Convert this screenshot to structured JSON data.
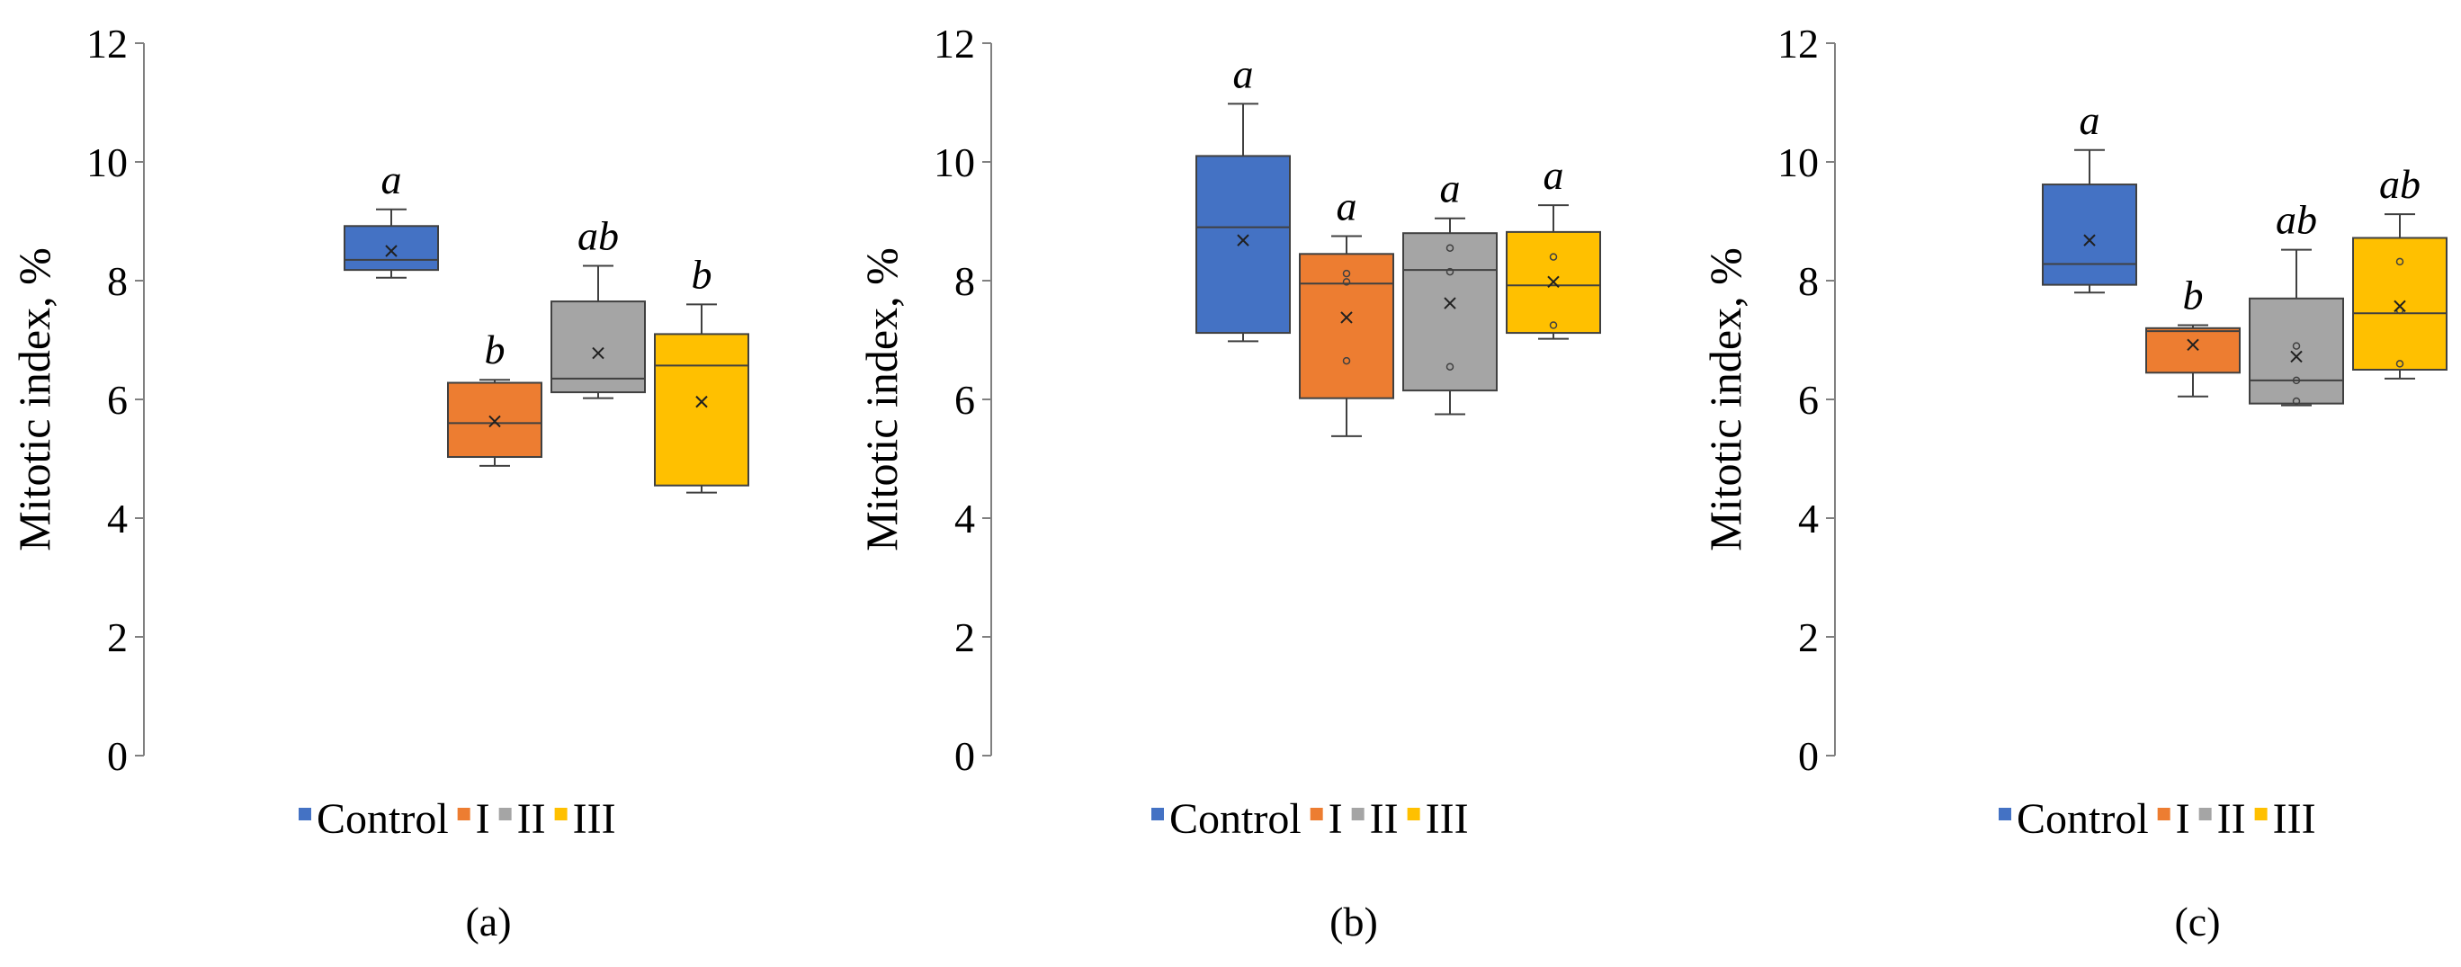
{
  "figure": {
    "legend_items": [
      "Control",
      "I",
      "II",
      "III"
    ],
    "colors": {
      "Control": "#4472C4",
      "I": "#ED7D31",
      "II": "#A5A5A5",
      "III": "#FFC000",
      "outline": "#404040",
      "axis": "#808080"
    }
  },
  "chart_data": [
    {
      "type": "box",
      "panel_label": "(a)",
      "ylabel": "Mitotic index, %",
      "ylim": [
        0,
        12
      ],
      "yticks": [
        "0",
        "2",
        "4",
        "6",
        "8",
        "10",
        "12"
      ],
      "grid": false,
      "legend_position": "bottom-center",
      "categories": [
        "Control",
        "I",
        "II",
        "III"
      ],
      "boxes": [
        {
          "name": "Control",
          "min": 8.05,
          "q1": 8.18,
          "median": 8.35,
          "q3": 8.92,
          "max": 9.2,
          "mean": 8.5,
          "points": [],
          "letter": "a"
        },
        {
          "name": "I",
          "min": 4.88,
          "q1": 5.03,
          "median": 5.6,
          "q3": 6.28,
          "max": 6.33,
          "mean": 5.63,
          "points": [],
          "letter": "b"
        },
        {
          "name": "II",
          "min": 6.02,
          "q1": 6.12,
          "median": 6.35,
          "q3": 7.65,
          "max": 8.25,
          "mean": 6.78,
          "points": [],
          "letter": "ab"
        },
        {
          "name": "III",
          "min": 4.43,
          "q1": 4.55,
          "median": 6.57,
          "q3": 7.1,
          "max": 7.6,
          "mean": 5.96,
          "points": [],
          "letter": "b"
        }
      ]
    },
    {
      "type": "box",
      "panel_label": "(b)",
      "ylabel": "Mitotic index, %",
      "ylim": [
        0,
        12
      ],
      "yticks": [
        "0",
        "2",
        "4",
        "6",
        "8",
        "10",
        "12"
      ],
      "grid": false,
      "legend_position": "bottom-center",
      "categories": [
        "Control",
        "I",
        "II",
        "III"
      ],
      "boxes": [
        {
          "name": "Control",
          "min": 6.98,
          "q1": 7.12,
          "median": 8.9,
          "q3": 10.1,
          "max": 10.98,
          "mean": 8.68,
          "points": [],
          "letter": "a"
        },
        {
          "name": "I",
          "min": 5.38,
          "q1": 6.02,
          "median": 7.95,
          "q3": 8.45,
          "max": 8.75,
          "mean": 7.38,
          "points": [
            8.12,
            7.98,
            6.65
          ],
          "letter": "a"
        },
        {
          "name": "II",
          "min": 5.75,
          "q1": 6.15,
          "median": 8.18,
          "q3": 8.8,
          "max": 9.05,
          "mean": 7.62,
          "points": [
            8.55,
            8.15,
            6.55
          ],
          "letter": "a"
        },
        {
          "name": "III",
          "min": 7.02,
          "q1": 7.12,
          "median": 7.92,
          "q3": 8.82,
          "max": 9.27,
          "mean": 7.98,
          "points": [
            8.4,
            7.25
          ],
          "letter": "a"
        }
      ]
    },
    {
      "type": "box",
      "panel_label": "(c)",
      "ylabel": "Mitotic index, %",
      "ylim": [
        0,
        12
      ],
      "yticks": [
        "0",
        "2",
        "4",
        "6",
        "8",
        "10",
        "12"
      ],
      "grid": false,
      "legend_position": "bottom-center",
      "categories": [
        "Control",
        "I",
        "II",
        "III"
      ],
      "boxes": [
        {
          "name": "Control",
          "min": 7.8,
          "q1": 7.93,
          "median": 8.28,
          "q3": 9.62,
          "max": 10.2,
          "mean": 8.68,
          "points": [],
          "letter": "a"
        },
        {
          "name": "I",
          "min": 6.05,
          "q1": 6.45,
          "median": 7.15,
          "q3": 7.2,
          "max": 7.25,
          "mean": 6.92,
          "points": [],
          "letter": "b"
        },
        {
          "name": "II",
          "min": 5.9,
          "q1": 5.93,
          "median": 6.32,
          "q3": 7.7,
          "max": 8.52,
          "mean": 6.72,
          "points": [
            6.9,
            6.32,
            5.97
          ],
          "letter": "ab"
        },
        {
          "name": "III",
          "min": 6.35,
          "q1": 6.5,
          "median": 7.45,
          "q3": 8.72,
          "max": 9.12,
          "mean": 7.57,
          "points": [
            8.32,
            7.5,
            6.6
          ],
          "letter": "ab"
        }
      ]
    }
  ]
}
